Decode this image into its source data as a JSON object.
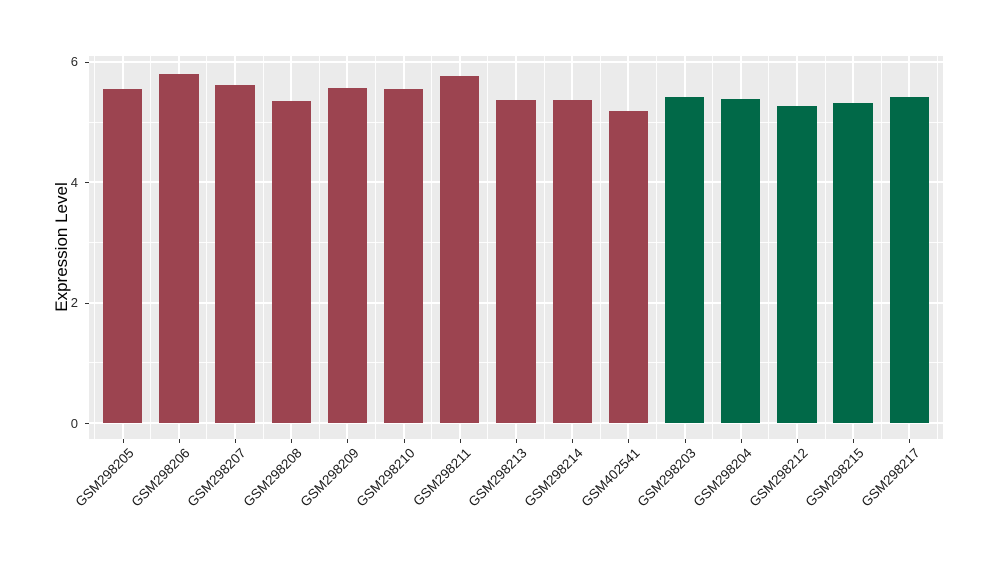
{
  "figure": {
    "background_color": "#FFFFFF",
    "panel_background_color": "#EBEBEB",
    "grid_color": "#FFFFFF",
    "axis_text_color": "#1A1A1A",
    "tick_color": "#333333"
  },
  "chart_data": {
    "type": "bar",
    "title": "",
    "xlabel": "",
    "ylabel": "Expression Level",
    "ylim": [
      0,
      6.1
    ],
    "yticks": [
      0,
      2,
      4,
      6
    ],
    "minor_yticks": [
      1,
      3,
      5
    ],
    "grid": true,
    "legend_position": "none",
    "x_label_rotation_deg": 45,
    "categories": [
      "GSM298205",
      "GSM298206",
      "GSM298207",
      "GSM298208",
      "GSM298209",
      "GSM298210",
      "GSM298211",
      "GSM298213",
      "GSM298214",
      "GSM402541",
      "GSM298203",
      "GSM298204",
      "GSM298212",
      "GSM298215",
      "GSM298217"
    ],
    "values": [
      5.55,
      5.8,
      5.62,
      5.35,
      5.56,
      5.55,
      5.76,
      5.37,
      5.36,
      5.19,
      5.42,
      5.39,
      5.27,
      5.31,
      5.42
    ],
    "bar_groups": [
      "red",
      "red",
      "red",
      "red",
      "red",
      "red",
      "red",
      "red",
      "red",
      "red",
      "green",
      "green",
      "green",
      "green",
      "green"
    ],
    "group_colors": {
      "red": "#9C4450",
      "green": "#016948"
    }
  }
}
